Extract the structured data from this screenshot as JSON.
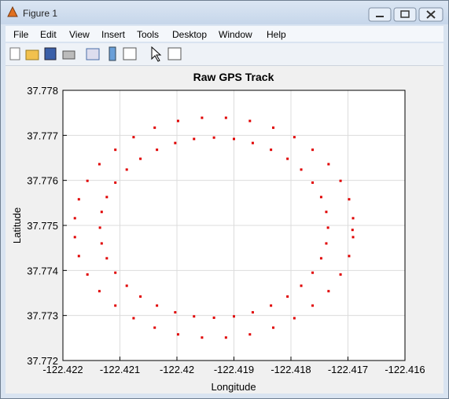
{
  "window": {
    "title": "Figure 1",
    "menu": [
      "File",
      "Edit",
      "View",
      "Insert",
      "Tools",
      "Desktop",
      "Window",
      "Help"
    ]
  },
  "chart_data": {
    "type": "scatter",
    "title": "Raw GPS Track",
    "x_label": "Longitude",
    "y_label": "Latitude",
    "color": "#e00000",
    "grid": true,
    "xlim": [
      -122.422,
      -122.416
    ],
    "xticks": [
      -122.422,
      -122.421,
      -122.42,
      -122.419,
      -122.418,
      -122.417,
      -122.416
    ],
    "ylim": [
      37.772,
      37.778
    ],
    "yticks": [
      37.772,
      37.773,
      37.774,
      37.775,
      37.776,
      37.777,
      37.778
    ],
    "x": [
      -122.41735,
      -122.41738,
      -122.41747,
      -122.41762,
      -122.41782,
      -122.41806,
      -122.41835,
      -122.41867,
      -122.419,
      -122.41935,
      -122.4197,
      -122.42003,
      -122.42035,
      -122.42064,
      -122.42088,
      -122.42108,
      -122.42123,
      -122.42132,
      -122.42135,
      -122.42132,
      -122.42123,
      -122.42108,
      -122.42088,
      -122.42064,
      -122.42035,
      -122.42003,
      -122.4197,
      -122.41935,
      -122.419,
      -122.41867,
      -122.41835,
      -122.41806,
      -122.41782,
      -122.41762,
      -122.41747,
      -122.41738,
      -122.41691,
      -122.41698,
      -122.41713,
      -122.41734,
      -122.41762,
      -122.41794,
      -122.41831,
      -122.41872,
      -122.41914,
      -122.41956,
      -122.41998,
      -122.42039,
      -122.42076,
      -122.42108,
      -122.42136,
      -122.42157,
      -122.42172,
      -122.42179,
      -122.42179,
      -122.42172,
      -122.42157,
      -122.42136,
      -122.42108,
      -122.42076,
      -122.42039,
      -122.41998,
      -122.41956,
      -122.41914,
      -122.41872,
      -122.41831,
      -122.41794,
      -122.41762,
      -122.41734,
      -122.41713,
      -122.41698,
      -122.41691,
      -122.41692
    ],
    "y": [
      37.77495,
      37.7753,
      37.77563,
      37.77595,
      37.77624,
      37.77648,
      37.77668,
      37.77683,
      37.77692,
      37.77695,
      37.77692,
      37.77683,
      37.77668,
      37.77648,
      37.77624,
      37.77595,
      37.77563,
      37.7753,
      37.77495,
      37.7746,
      37.77427,
      37.77395,
      37.77366,
      37.77342,
      37.77322,
      37.77307,
      37.77298,
      37.77295,
      37.77298,
      37.77307,
      37.77322,
      37.77342,
      37.77366,
      37.77395,
      37.77427,
      37.7746,
      37.77516,
      37.77558,
      37.77599,
      37.77636,
      37.77668,
      37.77696,
      37.77717,
      37.77732,
      37.77739,
      37.77739,
      37.77732,
      37.77717,
      37.77696,
      37.77668,
      37.77636,
      37.77599,
      37.77558,
      37.77516,
      37.77474,
      37.77432,
      37.77391,
      37.77354,
      37.77322,
      37.77294,
      37.77273,
      37.77258,
      37.77251,
      37.77251,
      37.77258,
      37.77273,
      37.77294,
      37.77322,
      37.77354,
      37.77391,
      37.77432,
      37.77474,
      37.7749
    ]
  }
}
